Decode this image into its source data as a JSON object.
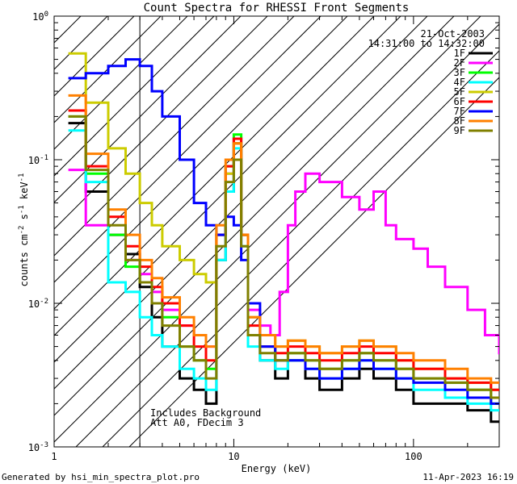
{
  "chart_data": {
    "type": "line",
    "title": "Count Spectra for RHESSI Front Segments",
    "xlabel": "Energy (keV)",
    "ylabel_parts": {
      "base": "counts cm",
      "e1": "-2",
      "mid": " s",
      "e2": "-1",
      "unit": " keV",
      "e3": "-1"
    },
    "xscale": "log",
    "yscale": "log",
    "xlim": [
      1,
      300
    ],
    "ylim": [
      0.001,
      1
    ],
    "x_ticks": [
      {
        "v": 1,
        "label": "1"
      },
      {
        "v": 10,
        "label": "10"
      },
      {
        "v": 100,
        "label": "100"
      }
    ],
    "y_ticks": [
      {
        "v": 0.001,
        "base": "10",
        "exp": "-3"
      },
      {
        "v": 0.01,
        "base": "10",
        "exp": "-2"
      },
      {
        "v": 0.1,
        "base": "10",
        "exp": "-1"
      },
      {
        "v": 1,
        "base": "10",
        "exp": "0"
      }
    ],
    "date": "21-Oct-2003",
    "time_range": "14:31:00 to 14:32:00",
    "hatched_region_max_energy": 3,
    "annotation_lines": [
      "Includes Background",
      "Att A0, FDecim 3"
    ],
    "footer_left": "Generated by hsi_min_spectra_plot.pro",
    "footer_right": "11-Apr-2023 16:19",
    "legend_position": "top-right",
    "series": [
      {
        "name": "1F",
        "color": "#000000",
        "values": [
          [
            1.2,
            0.18
          ],
          [
            1.5,
            0.06
          ],
          [
            2.0,
            0.03
          ],
          [
            2.5,
            0.022
          ],
          [
            3.0,
            0.013
          ],
          [
            3.5,
            0.008
          ],
          [
            4.0,
            0.005
          ],
          [
            5.0,
            0.003
          ],
          [
            6.0,
            0.0025
          ],
          [
            7.0,
            0.002
          ],
          [
            8.0,
            0.02
          ],
          [
            9.0,
            0.06
          ],
          [
            10.0,
            0.13
          ],
          [
            11.0,
            0.03
          ],
          [
            12.0,
            0.006
          ],
          [
            14.0,
            0.004
          ],
          [
            17.0,
            0.003
          ],
          [
            20.0,
            0.004
          ],
          [
            25.0,
            0.003
          ],
          [
            30.0,
            0.0025
          ],
          [
            40.0,
            0.003
          ],
          [
            50.0,
            0.0035
          ],
          [
            60.0,
            0.003
          ],
          [
            80.0,
            0.0025
          ],
          [
            100.0,
            0.002
          ],
          [
            150.0,
            0.002
          ],
          [
            200.0,
            0.0018
          ],
          [
            270.0,
            0.0015
          ]
        ]
      },
      {
        "name": "2F",
        "color": "#ff00ff",
        "values": [
          [
            1.2,
            0.085
          ],
          [
            1.5,
            0.035
          ],
          [
            2.0,
            0.03
          ],
          [
            2.5,
            0.02
          ],
          [
            3.0,
            0.016
          ],
          [
            3.5,
            0.012
          ],
          [
            4.0,
            0.009
          ],
          [
            5.0,
            0.007
          ],
          [
            6.0,
            0.006
          ],
          [
            7.0,
            0.005
          ],
          [
            8.0,
            0.03
          ],
          [
            9.0,
            0.08
          ],
          [
            10.0,
            0.14
          ],
          [
            11.0,
            0.03
          ],
          [
            12.0,
            0.009
          ],
          [
            14.0,
            0.007
          ],
          [
            16.0,
            0.006
          ],
          [
            18.0,
            0.012
          ],
          [
            20.0,
            0.035
          ],
          [
            22.0,
            0.06
          ],
          [
            25.0,
            0.08
          ],
          [
            30.0,
            0.07
          ],
          [
            40.0,
            0.055
          ],
          [
            50.0,
            0.045
          ],
          [
            60.0,
            0.06
          ],
          [
            70.0,
            0.035
          ],
          [
            80.0,
            0.028
          ],
          [
            100.0,
            0.024
          ],
          [
            120.0,
            0.018
          ],
          [
            150.0,
            0.013
          ],
          [
            200.0,
            0.009
          ],
          [
            250.0,
            0.006
          ],
          [
            300.0,
            0.0045
          ]
        ]
      },
      {
        "name": "3F",
        "color": "#00ff00",
        "values": [
          [
            1.2,
            0.2
          ],
          [
            1.5,
            0.08
          ],
          [
            2.0,
            0.03
          ],
          [
            2.5,
            0.018
          ],
          [
            3.0,
            0.014
          ],
          [
            3.5,
            0.01
          ],
          [
            4.0,
            0.008
          ],
          [
            5.0,
            0.005
          ],
          [
            6.0,
            0.004
          ],
          [
            7.0,
            0.0035
          ],
          [
            8.0,
            0.03
          ],
          [
            9.0,
            0.09
          ],
          [
            10.0,
            0.15
          ],
          [
            11.0,
            0.03
          ],
          [
            12.0,
            0.006
          ],
          [
            14.0,
            0.005
          ],
          [
            17.0,
            0.004
          ],
          [
            20.0,
            0.0045
          ],
          [
            25.0,
            0.004
          ],
          [
            30.0,
            0.0035
          ],
          [
            40.0,
            0.004
          ],
          [
            50.0,
            0.0045
          ],
          [
            60.0,
            0.004
          ],
          [
            80.0,
            0.0035
          ],
          [
            100.0,
            0.003
          ],
          [
            150.0,
            0.0028
          ],
          [
            200.0,
            0.0025
          ],
          [
            270.0,
            0.002
          ]
        ]
      },
      {
        "name": "4F",
        "color": "#00ffff",
        "values": [
          [
            1.2,
            0.16
          ],
          [
            1.5,
            0.07
          ],
          [
            2.0,
            0.014
          ],
          [
            2.5,
            0.012
          ],
          [
            3.0,
            0.008
          ],
          [
            3.5,
            0.006
          ],
          [
            4.0,
            0.005
          ],
          [
            5.0,
            0.0035
          ],
          [
            6.0,
            0.003
          ],
          [
            7.0,
            0.0025
          ],
          [
            8.0,
            0.02
          ],
          [
            9.0,
            0.06
          ],
          [
            10.0,
            0.12
          ],
          [
            11.0,
            0.025
          ],
          [
            12.0,
            0.005
          ],
          [
            14.0,
            0.004
          ],
          [
            17.0,
            0.0035
          ],
          [
            20.0,
            0.004
          ],
          [
            25.0,
            0.0035
          ],
          [
            30.0,
            0.003
          ],
          [
            40.0,
            0.0035
          ],
          [
            50.0,
            0.004
          ],
          [
            60.0,
            0.0035
          ],
          [
            80.0,
            0.003
          ],
          [
            100.0,
            0.0025
          ],
          [
            150.0,
            0.0022
          ],
          [
            200.0,
            0.002
          ],
          [
            270.0,
            0.0018
          ]
        ]
      },
      {
        "name": "5F",
        "color": "#cccc00",
        "values": [
          [
            1.2,
            0.55
          ],
          [
            1.5,
            0.25
          ],
          [
            2.0,
            0.12
          ],
          [
            2.5,
            0.08
          ],
          [
            3.0,
            0.05
          ],
          [
            3.5,
            0.035
          ],
          [
            4.0,
            0.025
          ],
          [
            5.0,
            0.02
          ],
          [
            6.0,
            0.016
          ],
          [
            7.0,
            0.014
          ],
          [
            8.0,
            0.03
          ],
          [
            9.0,
            0.08
          ],
          [
            10.0,
            0.13
          ],
          [
            11.0,
            0.03
          ],
          [
            12.0,
            0.008
          ],
          [
            14.0,
            0.006
          ],
          [
            17.0,
            0.005
          ],
          [
            20.0,
            0.0055
          ],
          [
            25.0,
            0.005
          ],
          [
            30.0,
            0.0045
          ],
          [
            40.0,
            0.005
          ],
          [
            50.0,
            0.0055
          ],
          [
            60.0,
            0.005
          ],
          [
            80.0,
            0.004
          ],
          [
            100.0,
            0.0035
          ],
          [
            150.0,
            0.003
          ],
          [
            200.0,
            0.0028
          ],
          [
            270.0,
            0.0025
          ]
        ]
      },
      {
        "name": "6F",
        "color": "#ff0000",
        "values": [
          [
            1.2,
            0.22
          ],
          [
            1.5,
            0.09
          ],
          [
            2.0,
            0.04
          ],
          [
            2.5,
            0.025
          ],
          [
            3.0,
            0.018
          ],
          [
            3.5,
            0.013
          ],
          [
            4.0,
            0.01
          ],
          [
            5.0,
            0.007
          ],
          [
            6.0,
            0.005
          ],
          [
            7.0,
            0.004
          ],
          [
            8.0,
            0.03
          ],
          [
            9.0,
            0.09
          ],
          [
            10.0,
            0.14
          ],
          [
            11.0,
            0.03
          ],
          [
            12.0,
            0.007
          ],
          [
            14.0,
            0.005
          ],
          [
            17.0,
            0.0045
          ],
          [
            20.0,
            0.005
          ],
          [
            25.0,
            0.0045
          ],
          [
            30.0,
            0.004
          ],
          [
            40.0,
            0.0045
          ],
          [
            50.0,
            0.005
          ],
          [
            60.0,
            0.0045
          ],
          [
            80.0,
            0.004
          ],
          [
            100.0,
            0.0035
          ],
          [
            150.0,
            0.003
          ],
          [
            200.0,
            0.0028
          ],
          [
            270.0,
            0.0025
          ]
        ]
      },
      {
        "name": "7F",
        "color": "#0000ff",
        "values": [
          [
            1.2,
            0.37
          ],
          [
            1.5,
            0.4
          ],
          [
            2.0,
            0.45
          ],
          [
            2.5,
            0.5
          ],
          [
            3.0,
            0.45
          ],
          [
            3.5,
            0.3
          ],
          [
            4.0,
            0.2
          ],
          [
            5.0,
            0.1
          ],
          [
            6.0,
            0.05
          ],
          [
            7.0,
            0.035
          ],
          [
            8.0,
            0.03
          ],
          [
            9.0,
            0.04
          ],
          [
            10.0,
            0.035
          ],
          [
            11.0,
            0.02
          ],
          [
            12.0,
            0.01
          ],
          [
            14.0,
            0.005
          ],
          [
            17.0,
            0.004
          ],
          [
            20.0,
            0.004
          ],
          [
            25.0,
            0.0035
          ],
          [
            30.0,
            0.003
          ],
          [
            40.0,
            0.0035
          ],
          [
            50.0,
            0.004
          ],
          [
            60.0,
            0.0035
          ],
          [
            80.0,
            0.003
          ],
          [
            100.0,
            0.0028
          ],
          [
            150.0,
            0.0025
          ],
          [
            200.0,
            0.0022
          ],
          [
            270.0,
            0.002
          ]
        ]
      },
      {
        "name": "8F",
        "color": "#ff8000",
        "values": [
          [
            1.2,
            0.28
          ],
          [
            1.5,
            0.11
          ],
          [
            2.0,
            0.045
          ],
          [
            2.5,
            0.03
          ],
          [
            3.0,
            0.02
          ],
          [
            3.5,
            0.015
          ],
          [
            4.0,
            0.011
          ],
          [
            5.0,
            0.008
          ],
          [
            6.0,
            0.006
          ],
          [
            7.0,
            0.005
          ],
          [
            8.0,
            0.035
          ],
          [
            9.0,
            0.1
          ],
          [
            10.0,
            0.13
          ],
          [
            11.0,
            0.03
          ],
          [
            12.0,
            0.008
          ],
          [
            14.0,
            0.006
          ],
          [
            17.0,
            0.005
          ],
          [
            20.0,
            0.0055
          ],
          [
            25.0,
            0.005
          ],
          [
            30.0,
            0.0045
          ],
          [
            40.0,
            0.005
          ],
          [
            50.0,
            0.0055
          ],
          [
            60.0,
            0.005
          ],
          [
            80.0,
            0.0045
          ],
          [
            100.0,
            0.004
          ],
          [
            150.0,
            0.0035
          ],
          [
            200.0,
            0.003
          ],
          [
            270.0,
            0.0028
          ]
        ]
      },
      {
        "name": "9F",
        "color": "#808000",
        "values": [
          [
            1.2,
            0.2
          ],
          [
            1.5,
            0.085
          ],
          [
            2.0,
            0.035
          ],
          [
            2.5,
            0.02
          ],
          [
            3.0,
            0.014
          ],
          [
            3.5,
            0.01
          ],
          [
            4.0,
            0.007
          ],
          [
            5.0,
            0.005
          ],
          [
            6.0,
            0.004
          ],
          [
            7.0,
            0.003
          ],
          [
            8.0,
            0.025
          ],
          [
            9.0,
            0.07
          ],
          [
            10.0,
            0.1
          ],
          [
            11.0,
            0.025
          ],
          [
            12.0,
            0.006
          ],
          [
            14.0,
            0.0045
          ],
          [
            17.0,
            0.004
          ],
          [
            20.0,
            0.0045
          ],
          [
            25.0,
            0.004
          ],
          [
            30.0,
            0.0035
          ],
          [
            40.0,
            0.004
          ],
          [
            50.0,
            0.0045
          ],
          [
            60.0,
            0.004
          ],
          [
            80.0,
            0.0035
          ],
          [
            100.0,
            0.003
          ],
          [
            150.0,
            0.0028
          ],
          [
            200.0,
            0.0025
          ],
          [
            270.0,
            0.0022
          ]
        ]
      }
    ]
  }
}
